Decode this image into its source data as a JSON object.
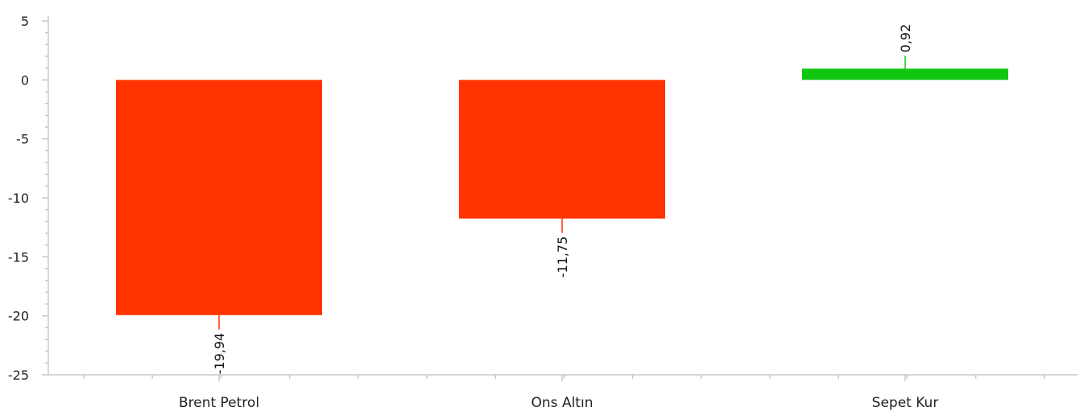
{
  "chart_data": {
    "type": "bar",
    "categories": [
      "Brent Petrol",
      "Ons Altın",
      "Sepet Kur"
    ],
    "values": [
      -19.94,
      -11.75,
      0.92
    ],
    "value_labels": [
      "-19,94",
      "-11,75",
      "0,92"
    ],
    "ylim": [
      -25,
      5
    ],
    "yticks": [
      5,
      0,
      -5,
      -10,
      -15,
      -20,
      -25
    ],
    "ytick_labels": [
      "5",
      "0",
      "-5",
      "-10",
      "-15",
      "-20",
      "-25"
    ],
    "title": "",
    "xlabel": "",
    "ylabel": "",
    "grid": false,
    "colors": {
      "negative": "#ff3300",
      "positive": "#11c611",
      "axis": "#c8c8c8"
    }
  }
}
